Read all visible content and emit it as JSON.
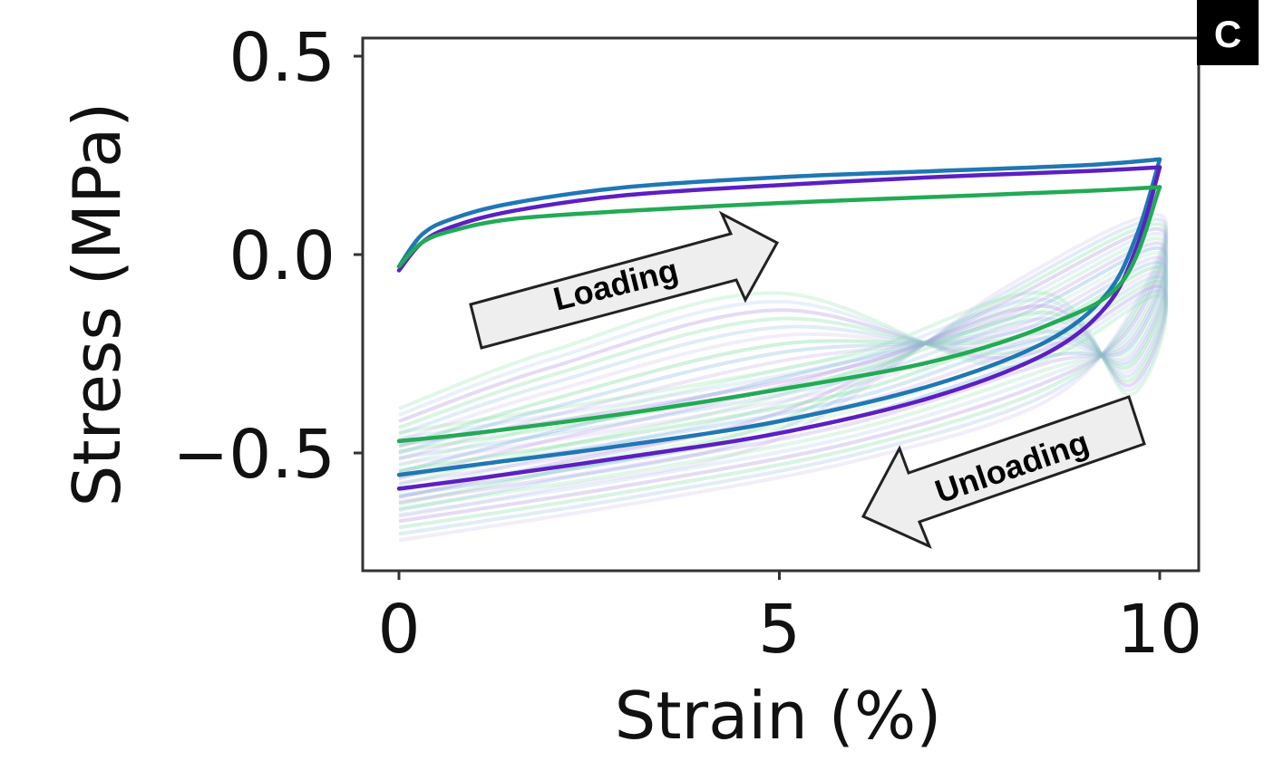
{
  "panel_label": "C",
  "annotations": {
    "loading": "Loading",
    "unloading": "Unloading"
  },
  "colors": {
    "blue": "#1f77b4",
    "purple": "#5b1fc4",
    "green": "#22aa55",
    "faint_purple": "#b59be6",
    "faint_blue": "#7fb3de",
    "faint_green": "#7fdca0"
  },
  "chart_data": {
    "type": "line",
    "xlabel": "Strain (%)",
    "ylabel": "Stress (MPa)",
    "xlim": [
      -0.5,
      10.5
    ],
    "ylim": [
      -0.8,
      0.55
    ],
    "xticks": [
      0,
      5,
      10
    ],
    "xtick_labels": [
      "0",
      "5",
      "10"
    ],
    "yticks": [
      -0.5,
      0.0,
      0.5
    ],
    "ytick_labels": [
      "−0.5",
      "0.0",
      "0.5"
    ],
    "grid": false,
    "series": [
      {
        "color": "#1f77b4",
        "loading": [
          [
            0,
            -0.03
          ],
          [
            0.3,
            0.05
          ],
          [
            0.7,
            0.09
          ],
          [
            1.5,
            0.13
          ],
          [
            3,
            0.17
          ],
          [
            5,
            0.195
          ],
          [
            7,
            0.21
          ],
          [
            9,
            0.225
          ],
          [
            10,
            0.24
          ]
        ],
        "unloading": [
          [
            10,
            0.24
          ],
          [
            9.7,
            0.05
          ],
          [
            9.3,
            -0.1
          ],
          [
            8.5,
            -0.22
          ],
          [
            7,
            -0.33
          ],
          [
            5,
            -0.42
          ],
          [
            3,
            -0.48
          ],
          [
            1,
            -0.53
          ],
          [
            0,
            -0.555
          ]
        ]
      },
      {
        "color": "#5b1fc4",
        "loading": [
          [
            0,
            -0.04
          ],
          [
            0.3,
            0.03
          ],
          [
            0.7,
            0.07
          ],
          [
            1.5,
            0.11
          ],
          [
            3,
            0.15
          ],
          [
            5,
            0.175
          ],
          [
            7,
            0.195
          ],
          [
            9,
            0.21
          ],
          [
            10,
            0.22
          ]
        ],
        "unloading": [
          [
            10,
            0.22
          ],
          [
            9.7,
            0.02
          ],
          [
            9.3,
            -0.13
          ],
          [
            8.5,
            -0.25
          ],
          [
            7,
            -0.36
          ],
          [
            5,
            -0.45
          ],
          [
            3,
            -0.51
          ],
          [
            1,
            -0.565
          ],
          [
            0,
            -0.59
          ]
        ]
      },
      {
        "color": "#22aa55",
        "loading": [
          [
            0,
            -0.03
          ],
          [
            0.3,
            0.03
          ],
          [
            0.7,
            0.06
          ],
          [
            1.5,
            0.09
          ],
          [
            3,
            0.11
          ],
          [
            5,
            0.13
          ],
          [
            7,
            0.145
          ],
          [
            9,
            0.16
          ],
          [
            10,
            0.17
          ]
        ],
        "unloading": [
          [
            10,
            0.17
          ],
          [
            9.5,
            -0.07
          ],
          [
            8.5,
            -0.18
          ],
          [
            7,
            -0.27
          ],
          [
            5,
            -0.34
          ],
          [
            3,
            -0.4
          ],
          [
            1,
            -0.45
          ],
          [
            0,
            -0.47
          ]
        ]
      }
    ]
  }
}
